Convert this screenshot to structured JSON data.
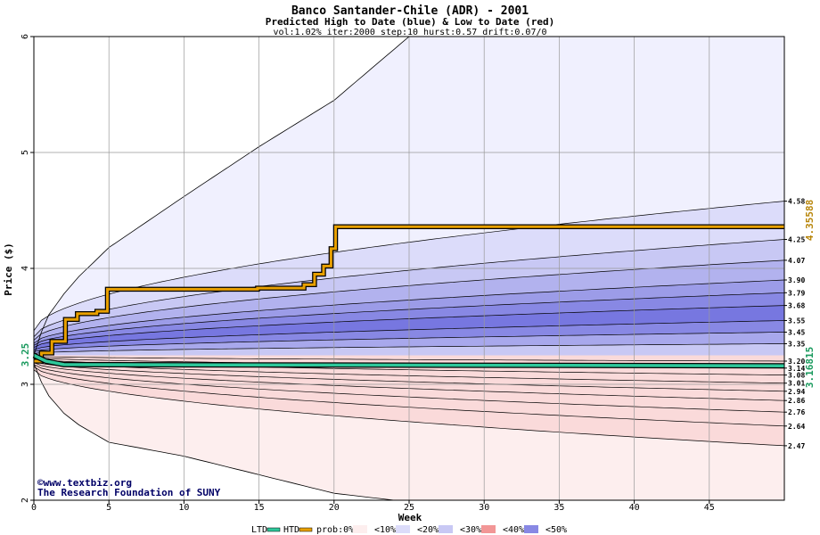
{
  "chart_data": {
    "type": "area",
    "title": "Banco Santander-Chile (ADR) - 2001",
    "subtitle": "Predicted High to Date (blue) &  Low to Date (red)",
    "params": "vol:1.02% iter:2000 step:10 hurst:0.57 drift:0.07/0",
    "xlabel": "Week",
    "ylabel": "Price ($)",
    "xlim": [
      0,
      50
    ],
    "ylim": [
      2,
      6
    ],
    "x_ticks": [
      0,
      5,
      10,
      15,
      20,
      25,
      30,
      35,
      40,
      45
    ],
    "y_ticks": [
      2,
      3,
      4,
      5,
      6
    ],
    "grid": true,
    "start_price": 3.25,
    "start_price_label": "3.25",
    "blue_envelope_label": "4.35588",
    "blue_envelope_value": 4.35588,
    "green_envelope_label": "3.16815",
    "green_envelope_value": 3.16815,
    "blue_outer_top": [
      [
        0,
        3.25
      ],
      [
        0.5,
        3.45
      ],
      [
        1,
        3.6
      ],
      [
        2,
        3.78
      ],
      [
        3,
        3.93
      ],
      [
        5,
        4.18
      ],
      [
        10,
        4.62
      ],
      [
        15,
        5.05
      ],
      [
        20,
        5.45
      ],
      [
        23,
        5.78
      ],
      [
        25,
        6.0
      ],
      [
        50,
        6.0
      ]
    ],
    "red_outer_bottom": [
      [
        0,
        3.18
      ],
      [
        0.5,
        3.02
      ],
      [
        1,
        2.9
      ],
      [
        2,
        2.75
      ],
      [
        3,
        2.65
      ],
      [
        5,
        2.5
      ],
      [
        10,
        2.38
      ],
      [
        15,
        2.22
      ],
      [
        20,
        2.06
      ],
      [
        24,
        2.0
      ],
      [
        50,
        2.0
      ]
    ],
    "blue_bands": [
      {
        "end": 4.58,
        "label": "4.58",
        "color": "#dcdcfa"
      },
      {
        "end": 4.25,
        "label": "4.25",
        "color": "#c8c8f4"
      },
      {
        "end": 4.07,
        "label": "4.07",
        "color": "#b2b2ee"
      },
      {
        "end": 3.9,
        "label": "3.90",
        "color": "#9c9ce8"
      },
      {
        "end": 3.79,
        "label": "3.79",
        "color": "#8888e4"
      },
      {
        "end": 3.68,
        "label": "3.68",
        "color": "#7777e0"
      },
      {
        "end": 3.55,
        "label": "3.55",
        "color": "#8888e4"
      },
      {
        "end": 3.45,
        "label": "3.45",
        "color": "#a8a8ec"
      },
      {
        "end": 3.35,
        "label": "3.35",
        "color": "#c8c8f4"
      },
      {
        "end": 3.2,
        "label": "3.20",
        "color": "#e6e6fa"
      }
    ],
    "red_bands": [
      {
        "end": 3.14,
        "label": "3.14",
        "color": "#fbdcdc"
      },
      {
        "end": 3.08,
        "label": "3.08",
        "color": "#f8c6c6"
      },
      {
        "end": 3.01,
        "label": "3.01",
        "color": "#f5aeae"
      },
      {
        "end": 2.94,
        "label": "2.94",
        "color": "#f29696"
      },
      {
        "end": 2.86,
        "label": "2.86",
        "color": "#f08888"
      },
      {
        "end": 2.76,
        "label": "2.76",
        "color": "#f29a9a"
      },
      {
        "end": 2.64,
        "label": "2.64",
        "color": "#f6b8b8"
      },
      {
        "end": 2.47,
        "label": "2.47",
        "color": "#fadada"
      }
    ],
    "blue_outer_color": "#f0f0fe",
    "red_outer_color": "#fdeeee",
    "htd_series": [
      [
        0,
        3.2
      ],
      [
        0.5,
        3.27
      ],
      [
        1.2,
        3.37
      ],
      [
        2.1,
        3.56
      ],
      [
        2.9,
        3.61
      ],
      [
        4.2,
        3.63
      ],
      [
        4.9,
        3.82
      ],
      [
        11,
        3.82
      ],
      [
        14.9,
        3.83
      ],
      [
        18,
        3.86
      ],
      [
        18.7,
        3.95
      ],
      [
        19.3,
        4.02
      ],
      [
        19.8,
        4.17
      ],
      [
        20.1,
        4.36
      ],
      [
        50,
        4.36
      ]
    ],
    "ltd_series": [
      [
        0,
        3.25
      ],
      [
        0.8,
        3.2
      ],
      [
        2,
        3.17
      ],
      [
        50,
        3.16
      ]
    ],
    "htd_color": "#e8a000",
    "ltd_color": "#2ec79a",
    "legend": {
      "placement": "bottom",
      "items": [
        "LTD",
        "HTD",
        "prob:0%",
        "<10%",
        "<20%",
        "<30%",
        "<40%",
        "<50%"
      ],
      "swatch_colors": [
        "#2ec79a",
        "#e8a000",
        "#ffffff",
        "#fdeeee",
        "#dcdcfa",
        "#c8c8f4",
        "#f29696",
        "#8888e4"
      ]
    }
  },
  "footer": {
    "copyright": "©www.textbiz.org",
    "org": "The Research Foundation of SUNY"
  }
}
